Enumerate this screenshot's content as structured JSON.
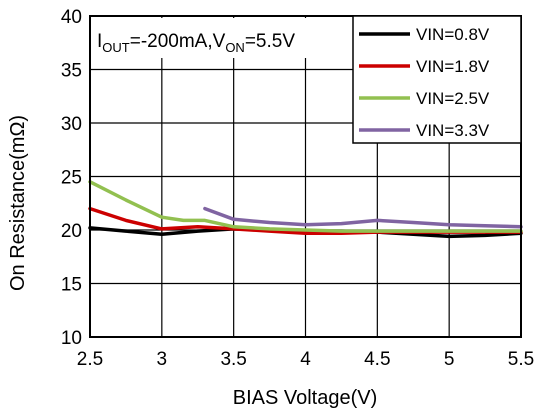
{
  "chart_data": {
    "type": "line",
    "xlabel": "BIAS Voltage(V)",
    "ylabel": "On Resistance(mΩ)",
    "xlim": [
      2.5,
      5.5
    ],
    "ylim": [
      10,
      40
    ],
    "xticks": [
      "2.5",
      "3",
      "3.5",
      "4",
      "4.5",
      "5",
      "5.5"
    ],
    "yticks": [
      "10",
      "15",
      "20",
      "25",
      "30",
      "35",
      "40"
    ],
    "grid": "on",
    "legend_position": "top-right",
    "annotation": {
      "parts": [
        {
          "text": "I",
          "sub": false
        },
        {
          "text": "OUT",
          "sub": true
        },
        {
          "text": "=-200mA,V",
          "sub": false
        },
        {
          "text": "ON",
          "sub": true
        },
        {
          "text": "=5.5V",
          "sub": false
        }
      ]
    },
    "series": [
      {
        "name": "VIN=0.8V",
        "color": "#000000",
        "x": [
          2.5,
          2.75,
          3.0,
          3.25,
          3.5,
          3.75,
          4.0,
          4.25,
          4.5,
          4.75,
          5.0,
          5.25,
          5.5
        ],
        "y": [
          20.2,
          19.9,
          19.6,
          19.9,
          20.1,
          20.0,
          19.9,
          19.9,
          19.8,
          19.6,
          19.4,
          19.5,
          19.7
        ]
      },
      {
        "name": "VIN=1.8V",
        "color": "#cc0000",
        "x": [
          2.5,
          2.75,
          3.0,
          3.25,
          3.5,
          3.75,
          4.0,
          4.25,
          4.5,
          4.75,
          5.0,
          5.25,
          5.5
        ],
        "y": [
          22.0,
          20.9,
          20.1,
          20.3,
          20.1,
          19.9,
          19.7,
          19.7,
          19.8,
          19.8,
          19.8,
          19.8,
          19.8
        ]
      },
      {
        "name": "VIN=2.5V",
        "color": "#92c050",
        "x": [
          2.5,
          2.75,
          3.0,
          3.15,
          3.3,
          3.5,
          3.75,
          4.0,
          4.25,
          4.5,
          4.75,
          5.0,
          5.25,
          5.5
        ],
        "y": [
          24.5,
          22.8,
          21.2,
          20.9,
          20.9,
          20.3,
          20.1,
          20.0,
          19.9,
          19.9,
          19.9,
          19.9,
          19.9,
          19.9
        ]
      },
      {
        "name": "VIN=3.3V",
        "color": "#8064a2",
        "x": [
          3.3,
          3.5,
          3.75,
          4.0,
          4.25,
          4.5,
          4.75,
          5.0,
          5.25,
          5.5
        ],
        "y": [
          22.0,
          21.0,
          20.7,
          20.5,
          20.6,
          20.9,
          20.7,
          20.5,
          20.4,
          20.3
        ]
      }
    ]
  }
}
